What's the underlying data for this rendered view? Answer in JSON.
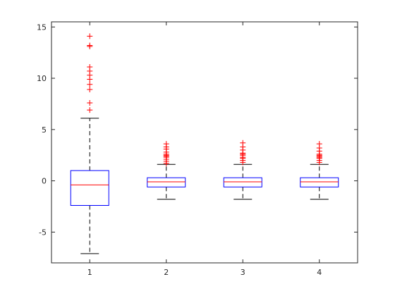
{
  "chart_data": {
    "type": "box",
    "categories": [
      "1",
      "2",
      "3",
      "4"
    ],
    "ylim": [
      -8,
      15.5
    ],
    "yticks": [
      -5,
      0,
      5,
      10,
      15
    ],
    "ytick_labels": [
      "-5",
      "0",
      "5",
      "10",
      "15"
    ],
    "title": "",
    "xlabel": "",
    "ylabel": "",
    "grid": false,
    "colors": {
      "box": "#0000ff",
      "median": "#ff0000",
      "whisker": "#000000",
      "outlier": "#ff0000",
      "axes": "#262626"
    },
    "boxes": [
      {
        "label": "1",
        "whisker_low": -7.1,
        "q1": -2.4,
        "median": -0.4,
        "q3": 1.0,
        "whisker_high": 6.1,
        "outliers": [
          6.9,
          7.6,
          8.9,
          9.4,
          9.9,
          10.3,
          10.7,
          11.1,
          13.1,
          13.2,
          14.1
        ]
      },
      {
        "label": "2",
        "whisker_low": -1.8,
        "q1": -0.6,
        "median": -0.1,
        "q3": 0.3,
        "whisker_high": 1.6,
        "outliers": [
          1.7,
          1.9,
          2.1,
          2.3,
          2.4,
          2.5,
          2.6,
          2.8,
          3.1,
          3.3,
          3.6
        ]
      },
      {
        "label": "3",
        "whisker_low": -1.8,
        "q1": -0.6,
        "median": -0.1,
        "q3": 0.3,
        "whisker_high": 1.6,
        "outliers": [
          1.8,
          2.0,
          2.2,
          2.3,
          2.5,
          2.6,
          2.7,
          3.0,
          3.3,
          3.7
        ]
      },
      {
        "label": "4",
        "whisker_low": -1.8,
        "q1": -0.6,
        "median": -0.1,
        "q3": 0.3,
        "whisker_high": 1.6,
        "outliers": [
          1.8,
          2.0,
          2.2,
          2.3,
          2.4,
          2.5,
          2.6,
          2.9,
          3.2,
          3.6
        ]
      }
    ]
  }
}
